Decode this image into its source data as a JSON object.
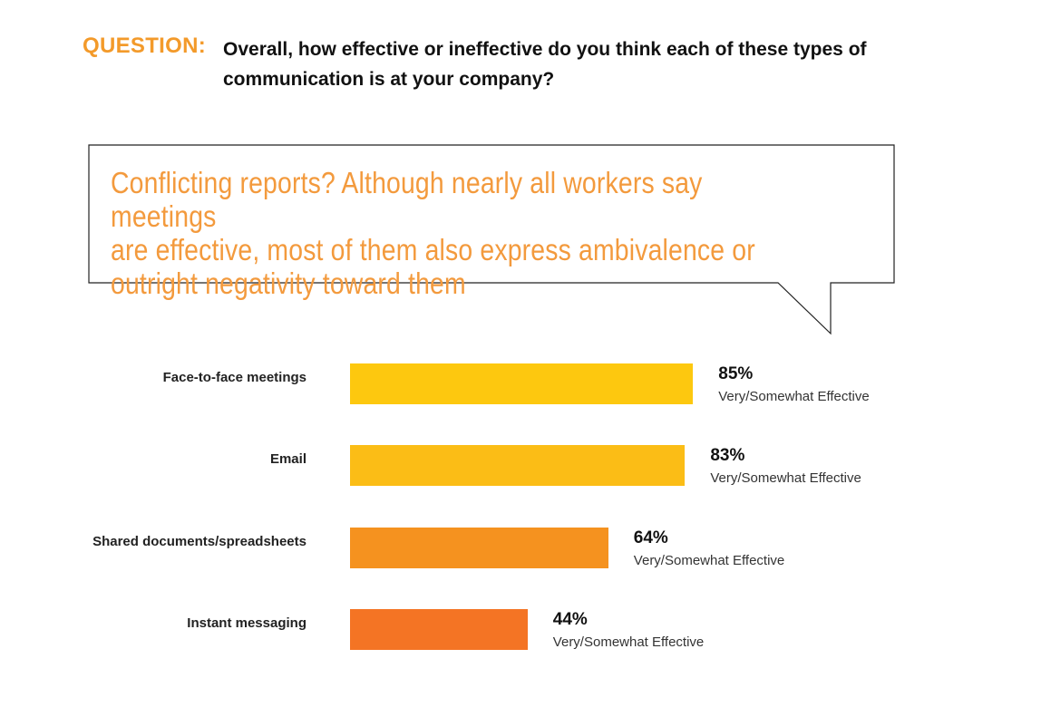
{
  "question": {
    "label": "QUESTION:",
    "line1": "Overall, how effective or ineffective do you think each of these types of",
    "line2": "communication is at your company?"
  },
  "callout": {
    "line1": "Conflicting reports? Although nearly all workers say meetings",
    "line2": "are effective, most of them also express ambivalence or",
    "line3": "outright negativity toward them"
  },
  "colors": {
    "accent": "#f39a2a",
    "bar1": "#fdc80f",
    "bar2": "#fbbd16",
    "bar3": "#f5921f",
    "bar4": "#f47424"
  },
  "chart_data": {
    "type": "bar",
    "orientation": "horizontal",
    "categories": [
      "Face-to-face meetings",
      "Email",
      "Shared documents/spreadsheets",
      "Instant messaging"
    ],
    "values": [
      85,
      83,
      64,
      44
    ],
    "value_labels": [
      "85%",
      "83%",
      "64%",
      "44%"
    ],
    "sublabel": "Very/Somewhat Effective",
    "xlim": [
      0,
      100
    ]
  }
}
